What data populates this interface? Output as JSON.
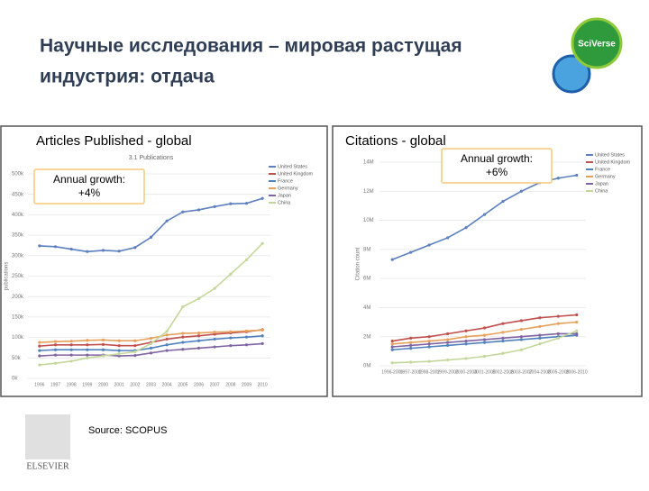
{
  "header": {
    "title": [
      "Научные исследования – мировая растущая",
      "индустрия: отдача"
    ],
    "logo": "SciVerse"
  },
  "footer": {
    "source": "Source:  SCOPUS",
    "logo": "ELSEVIER"
  },
  "chart_data": [
    {
      "type": "line",
      "title": "Articles Published - global",
      "subtitle": "3.1 Publications",
      "y_label": "publications",
      "annotation": [
        "Annual growth:",
        "+4%"
      ],
      "categories": [
        "1996",
        "1997",
        "1998",
        "1999",
        "2000",
        "2001",
        "2002",
        "2003",
        "2004",
        "2005",
        "2006",
        "2007",
        "2008",
        "2009",
        "2010"
      ],
      "ylim": [
        0,
        500000
      ],
      "yticks": [
        {
          "value": 0,
          "label": "0k"
        },
        {
          "value": 50000,
          "label": "50k"
        },
        {
          "value": 100000,
          "label": "100k"
        },
        {
          "value": 150000,
          "label": "150k"
        },
        {
          "value": 200000,
          "label": "200k"
        },
        {
          "value": 250000,
          "label": "250k"
        },
        {
          "value": 300000,
          "label": "300k"
        },
        {
          "value": 350000,
          "label": "350k"
        },
        {
          "value": 400000,
          "label": "400k"
        },
        {
          "value": 450000,
          "label": "450k"
        },
        {
          "value": 500000,
          "label": "500k"
        }
      ],
      "grid": true,
      "series": [
        {
          "name": "United States",
          "color": "#5b7fbf",
          "values": [
            324000,
            322000,
            316000,
            310000,
            313000,
            311000,
            320000,
            345000,
            385000,
            407000,
            412000,
            420000,
            427000,
            428000,
            440000
          ]
        },
        {
          "name": "United Kingdom",
          "color": "#c0504d",
          "values": [
            79000,
            82000,
            82000,
            82000,
            83000,
            80000,
            80000,
            88000,
            96000,
            101000,
            104000,
            108000,
            111000,
            114000,
            119000
          ]
        },
        {
          "name": "France",
          "color": "#4f81bd",
          "values": [
            68000,
            70000,
            70000,
            70000,
            70000,
            68000,
            68000,
            74000,
            82000,
            88000,
            92000,
            96000,
            99000,
            101000,
            104000
          ]
        },
        {
          "name": "Germany",
          "color": "#e7a05a",
          "values": [
            88000,
            90000,
            91000,
            93000,
            94000,
            92000,
            92000,
            98000,
            106000,
            110000,
            111000,
            113000,
            114000,
            116000,
            118000
          ]
        },
        {
          "name": "Japan",
          "color": "#8064a2",
          "values": [
            55000,
            57000,
            57000,
            57000,
            57000,
            55000,
            56000,
            62000,
            68000,
            71000,
            74000,
            77000,
            80000,
            82000,
            85000
          ]
        },
        {
          "name": "China",
          "color": "#c4d79b",
          "values": [
            33000,
            37000,
            42000,
            50000,
            55000,
            60000,
            65000,
            85000,
            115000,
            175000,
            195000,
            220000,
            255000,
            290000,
            330000
          ]
        }
      ]
    },
    {
      "type": "line",
      "title": "Citations - global",
      "y_label": "Citation count",
      "annotation": [
        "Annual growth:",
        "+6%"
      ],
      "categories": [
        "1996-2000",
        "1997-2001",
        "1998-2002",
        "1999-2003",
        "2000-2004",
        "2001-2005",
        "2002-2006",
        "2003-2007",
        "2004-2008",
        "2005-2009",
        "2006-2010"
      ],
      "ylim": [
        0,
        14000000
      ],
      "yticks": [
        {
          "value": 0,
          "label": "0M"
        },
        {
          "value": 2000000,
          "label": "2M"
        },
        {
          "value": 4000000,
          "label": "4M"
        },
        {
          "value": 6000000,
          "label": "6M"
        },
        {
          "value": 8000000,
          "label": "8M"
        },
        {
          "value": 10000000,
          "label": "10M"
        },
        {
          "value": 12000000,
          "label": "12M"
        },
        {
          "value": 14000000,
          "label": "14M"
        }
      ],
      "grid": true,
      "series": [
        {
          "name": "United States",
          "color": "#5b7fbf",
          "values": [
            7300000,
            7800000,
            8300000,
            8800000,
            9500000,
            10400000,
            11300000,
            12000000,
            12600000,
            12900000,
            13100000
          ]
        },
        {
          "name": "United Kingdom",
          "color": "#c0504d",
          "values": [
            1700000,
            1900000,
            2000000,
            2200000,
            2400000,
            2600000,
            2900000,
            3100000,
            3300000,
            3400000,
            3500000
          ]
        },
        {
          "name": "France",
          "color": "#4f81bd",
          "values": [
            1100000,
            1200000,
            1300000,
            1400000,
            1500000,
            1600000,
            1700000,
            1800000,
            1900000,
            2000000,
            2100000
          ]
        },
        {
          "name": "Germany",
          "color": "#e7a05a",
          "values": [
            1500000,
            1600000,
            1700000,
            1800000,
            2000000,
            2100000,
            2300000,
            2500000,
            2700000,
            2900000,
            3000000
          ]
        },
        {
          "name": "Japan",
          "color": "#8064a2",
          "values": [
            1300000,
            1400000,
            1500000,
            1600000,
            1700000,
            1800000,
            1900000,
            2000000,
            2100000,
            2200000,
            2200000
          ]
        },
        {
          "name": "China",
          "color": "#c4d79b",
          "values": [
            200000,
            250000,
            300000,
            400000,
            500000,
            650000,
            850000,
            1100000,
            1500000,
            1900000,
            2400000
          ]
        }
      ]
    }
  ]
}
